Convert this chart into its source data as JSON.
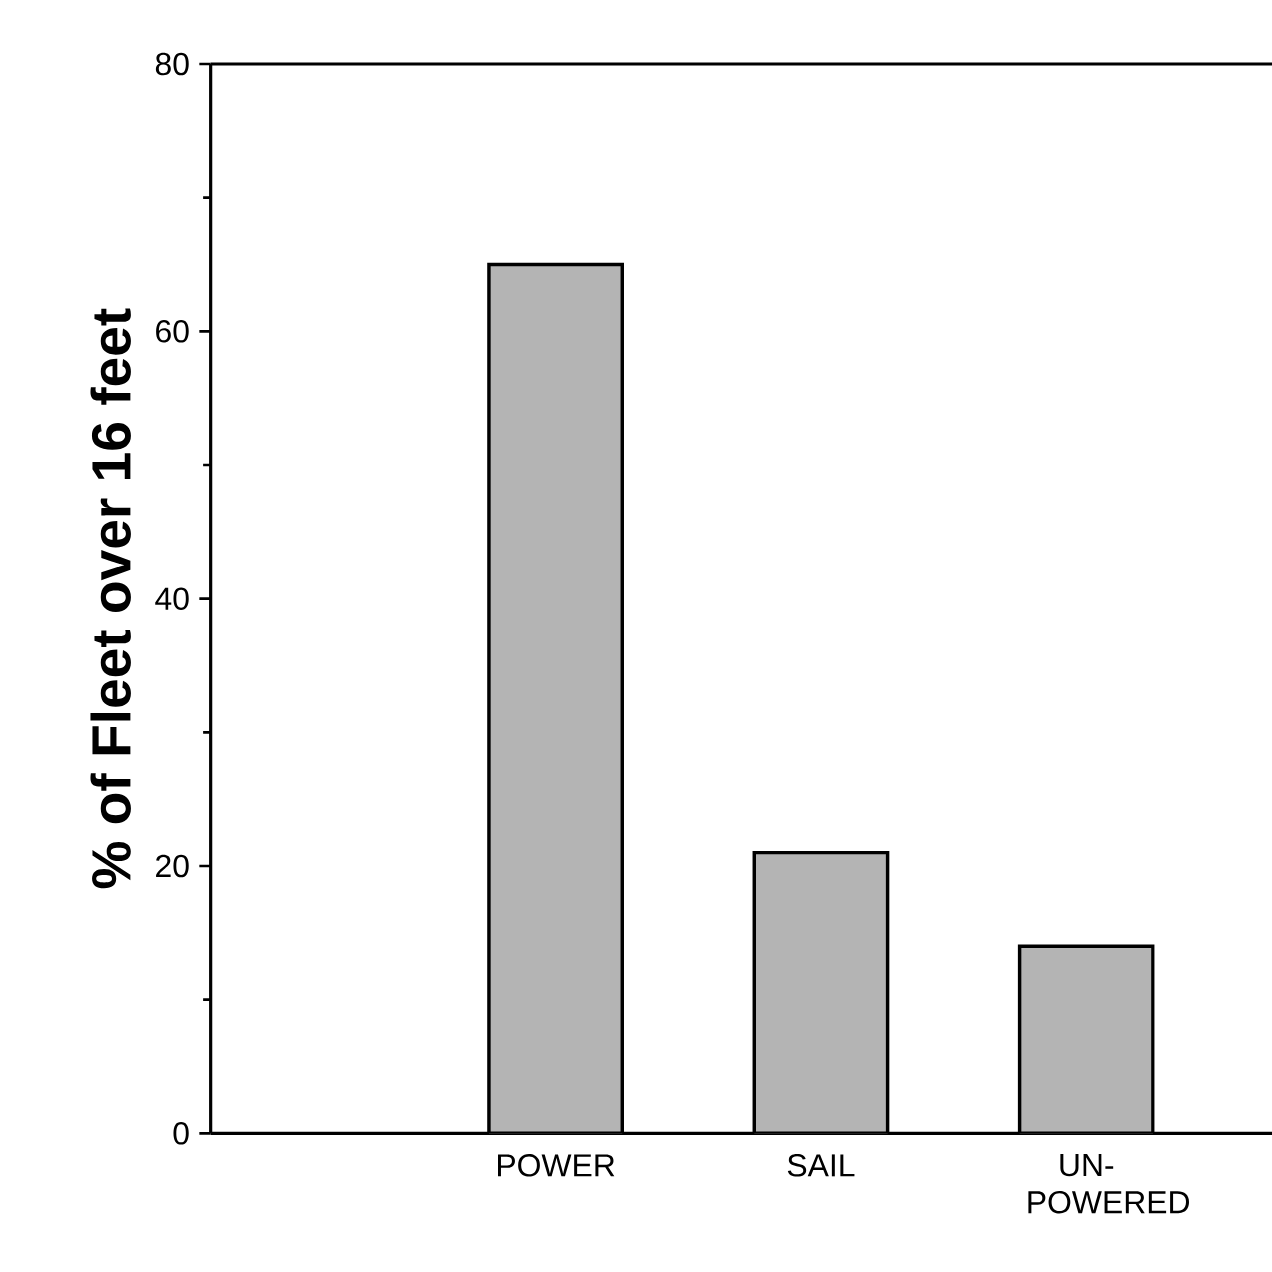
{
  "chart_data": {
    "type": "bar",
    "ylabel": "% of Fleet over 16 feet",
    "categories": [
      "POWER",
      "SAIL",
      "UN-POWERED"
    ],
    "values": [
      65,
      21,
      14
    ],
    "color": "#b4b4b4",
    "ylim": [
      0,
      80
    ],
    "yticks": [
      0,
      20,
      40,
      60,
      80
    ]
  }
}
